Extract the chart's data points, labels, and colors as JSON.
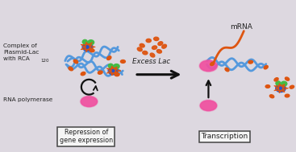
{
  "bg_color": "#ddd8e0",
  "label_complex": "Complex of\nPlasmid-Lac\nwith RCA",
  "label_rca_sub": "120",
  "label_rna_pol": "RNA polymerase",
  "label_repression": "Repression of\ngene expression",
  "label_excess": "Excess Lac",
  "label_transcription": "Transcription",
  "label_mrna": "mRNA",
  "dna_color": "#5599dd",
  "rna_pol_color": "#f050a0",
  "rca_color_blue": "#2255cc",
  "rca_color_green": "#44bb44",
  "lac_color": "#dd5511",
  "mrna_color": "#dd5511",
  "arrow_color": "#111111",
  "text_color": "#222222",
  "box_color": "#f5f5f5",
  "box_edge": "#444444"
}
